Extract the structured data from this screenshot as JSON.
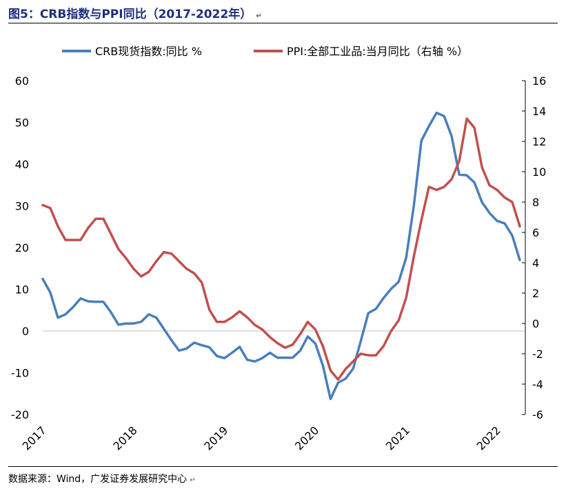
{
  "header": {
    "title": "图5：CRB指数与PPI同比（2017-2022年）",
    "mark": "↵"
  },
  "footer": {
    "source": "数据来源：Wind，广发证券发展研究中心",
    "mark": "↵"
  },
  "chart_data": {
    "type": "line",
    "title": "图5：CRB指数与PPI同比（2017-2022年）",
    "x_tick_labels": [
      "2017",
      "2018",
      "2019",
      "2020",
      "2021",
      "2022"
    ],
    "x_range": [
      "2017-01",
      "2022-04"
    ],
    "y_left": {
      "ylim": [
        -20,
        60
      ],
      "ticks": [
        -20,
        -10,
        0,
        10,
        20,
        30,
        40,
        50,
        60
      ]
    },
    "y_right": {
      "ylim": [
        -6,
        16
      ],
      "ticks": [
        -6,
        -4,
        -2,
        0,
        2,
        4,
        6,
        8,
        10,
        12,
        14,
        16
      ]
    },
    "legend_position": "top",
    "grid": false,
    "series": [
      {
        "name": "CRB现货指数:同比 %",
        "axis": "left",
        "color": "#4a7ebb",
        "values": [
          12.5,
          9.2,
          3.2,
          4.0,
          5.7,
          7.8,
          7.1,
          7.0,
          7.0,
          4.5,
          1.5,
          1.8,
          1.8,
          2.2,
          4.0,
          3.2,
          0.5,
          -2.2,
          -4.7,
          -4.2,
          -2.8,
          -3.4,
          -3.9,
          -6.0,
          -6.5,
          -5.2,
          -3.8,
          -6.9,
          -7.3,
          -6.5,
          -5.2,
          -6.4,
          -6.4,
          -6.4,
          -4.7,
          -1.3,
          -3.0,
          -8.3,
          -16.3,
          -12.4,
          -11.4,
          -9.0,
          -2.4,
          4.3,
          5.3,
          7.9,
          10.1,
          11.8,
          17.6,
          29.9,
          45.6,
          49.1,
          52.3,
          51.5,
          46.7,
          37.5,
          37.3,
          35.6,
          30.9,
          28.3,
          26.4,
          25.8,
          22.9,
          17.0
        ]
      },
      {
        "name": "PPI:全部工业品:当月同比（右轴 %）",
        "axis": "right",
        "color": "#c0504d",
        "values": [
          7.8,
          7.6,
          6.4,
          5.5,
          5.5,
          5.5,
          6.3,
          6.9,
          6.9,
          5.9,
          4.9,
          4.3,
          3.6,
          3.1,
          3.4,
          4.1,
          4.7,
          4.6,
          4.1,
          3.6,
          3.3,
          2.7,
          0.9,
          0.1,
          0.1,
          0.4,
          0.8,
          0.4,
          -0.1,
          -0.4,
          -0.9,
          -1.3,
          -1.6,
          -1.4,
          -0.7,
          0.1,
          -0.4,
          -1.5,
          -3.1,
          -3.7,
          -3.0,
          -2.5,
          -2.0,
          -2.1,
          -2.1,
          -1.5,
          -0.5,
          0.2,
          1.7,
          4.4,
          6.8,
          9.0,
          8.8,
          9.0,
          9.5,
          10.7,
          13.5,
          12.9,
          10.3,
          9.1,
          8.8,
          8.3,
          8.0,
          6.4
        ]
      }
    ]
  }
}
